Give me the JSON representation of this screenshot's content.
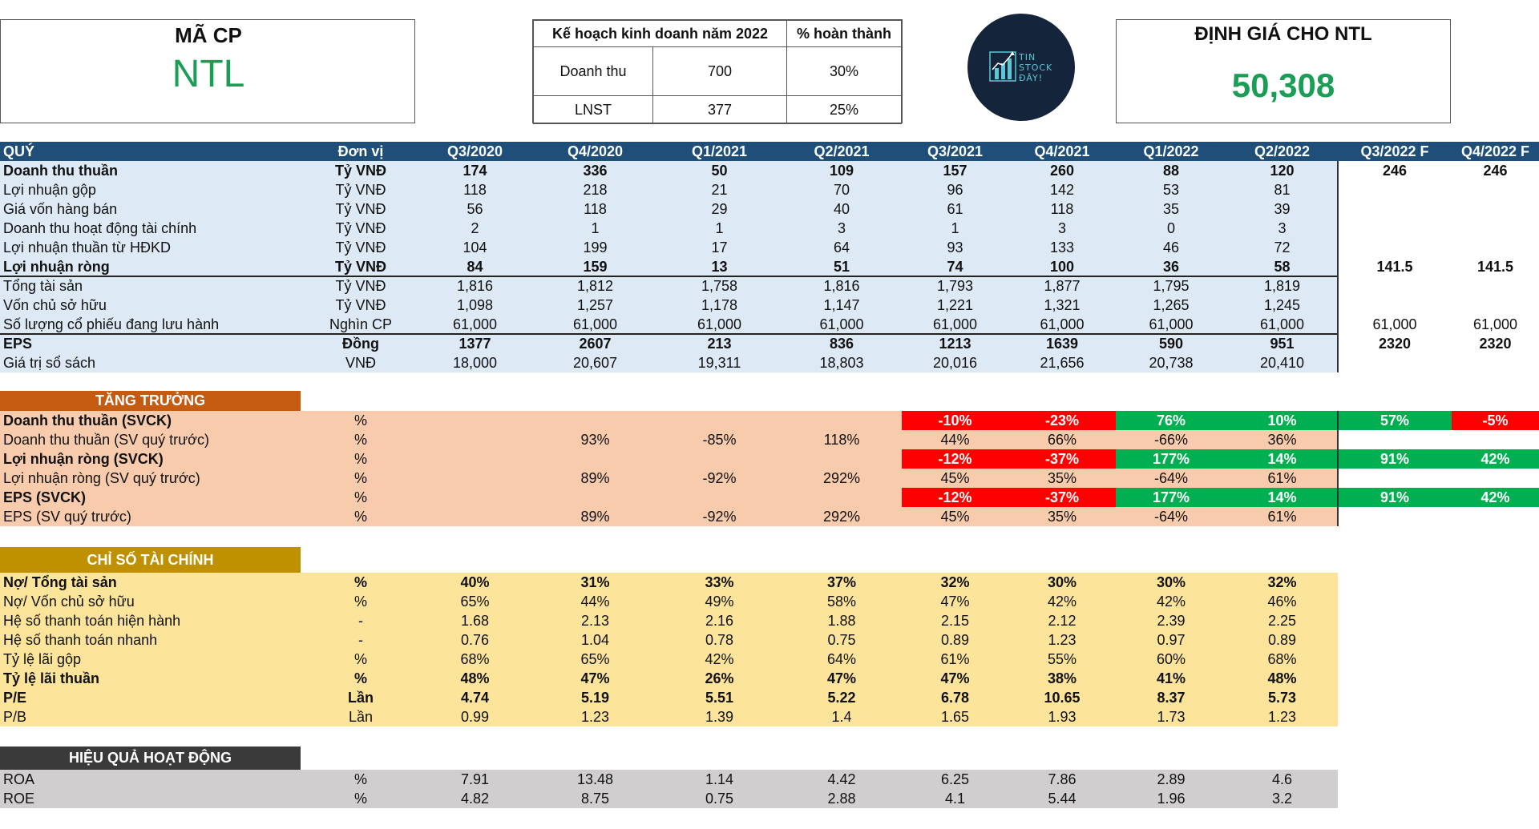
{
  "ticker_box": {
    "title": "MÃ CP",
    "ticker": "NTL"
  },
  "plan": {
    "header": "Kế hoạch kinh doanh năm 2022",
    "completion_header": "% hoàn thành",
    "rows": [
      {
        "label": "Doanh thu",
        "value": "700",
        "completion": "30%"
      },
      {
        "label": "LNST",
        "value": "377",
        "completion": "25%"
      }
    ]
  },
  "logo": {
    "line1": "TIN",
    "line2": "STOCK",
    "line3": "ĐÂY!",
    "bg": "#14243a",
    "accent": "#5bc8d6"
  },
  "valuation": {
    "title": "ĐỊNH GIÁ CHO NTL",
    "value": "50,308"
  },
  "colors": {
    "header_blue": "#1f4e79",
    "green": "#00b050",
    "red": "#ff0000",
    "ticker_green": "#1a9e55"
  },
  "main": {
    "headers": [
      "QUÝ",
      "Đơn vị",
      "Q3/2020",
      "Q4/2020",
      "Q1/2021",
      "Q2/2021",
      "Q3/2021",
      "Q4/2021",
      "Q1/2022",
      "Q2/2022",
      "Q3/2022 F",
      "Q4/2022 F"
    ],
    "rows": [
      {
        "label": "Doanh thu thuần",
        "unit": "Tỷ VNĐ",
        "bold": true,
        "values": [
          "174",
          "336",
          "50",
          "109",
          "157",
          "260",
          "88",
          "120",
          "246",
          "246"
        ]
      },
      {
        "label": "Lợi nhuận gộp",
        "unit": "Tỷ VNĐ",
        "bold": false,
        "values": [
          "118",
          "218",
          "21",
          "70",
          "96",
          "142",
          "53",
          "81",
          "",
          ""
        ]
      },
      {
        "label": "Giá vốn hàng bán",
        "unit": "Tỷ VNĐ",
        "bold": false,
        "values": [
          "56",
          "118",
          "29",
          "40",
          "61",
          "118",
          "35",
          "39",
          "",
          ""
        ]
      },
      {
        "label": "Doanh thu hoạt động tài chính",
        "unit": "Tỷ VNĐ",
        "bold": false,
        "values": [
          "2",
          "1",
          "1",
          "3",
          "1",
          "3",
          "0",
          "3",
          "",
          ""
        ]
      },
      {
        "label": "Lợi nhuận thuần từ HĐKD",
        "unit": "Tỷ VNĐ",
        "bold": false,
        "values": [
          "104",
          "199",
          "17",
          "64",
          "93",
          "133",
          "46",
          "72",
          "",
          ""
        ]
      },
      {
        "label": "Lợi nhuận ròng",
        "unit": "Tỷ VNĐ",
        "bold": true,
        "values": [
          "84",
          "159",
          "13",
          "51",
          "74",
          "100",
          "36",
          "58",
          "141.5",
          "141.5"
        ]
      },
      {
        "label": "Tổng tài sản",
        "unit": "Tỷ VNĐ",
        "bold": false,
        "values": [
          "1,816",
          "1,812",
          "1,758",
          "1,816",
          "1,793",
          "1,877",
          "1,795",
          "1,819",
          "",
          ""
        ]
      },
      {
        "label": "Vốn chủ sở hữu",
        "unit": "Tỷ VNĐ",
        "bold": false,
        "values": [
          "1,098",
          "1,257",
          "1,178",
          "1,147",
          "1,221",
          "1,321",
          "1,265",
          "1,245",
          "",
          ""
        ]
      },
      {
        "label": "Số lượng cổ phiếu đang lưu hành",
        "unit": "Nghìn CP",
        "bold": false,
        "values": [
          "61,000",
          "61,000",
          "61,000",
          "61,000",
          "61,000",
          "61,000",
          "61,000",
          "61,000",
          "61,000",
          "61,000"
        ]
      },
      {
        "label": "EPS",
        "unit": "Đồng",
        "bold": true,
        "values": [
          "1377",
          "2607",
          "213",
          "836",
          "1213",
          "1639",
          "590",
          "951",
          "2320",
          "2320"
        ]
      },
      {
        "label": "Giá trị sổ sách",
        "unit": "VNĐ",
        "bold": false,
        "values": [
          "18,000",
          "20,607",
          "19,311",
          "18,803",
          "20,016",
          "21,656",
          "20,738",
          "20,410",
          "",
          ""
        ]
      }
    ]
  },
  "growth": {
    "title": "TĂNG TRƯỞNG",
    "rows": [
      {
        "label": "Doanh thu thuần (SVCK)",
        "unit": "%",
        "bold": true,
        "values": [
          "",
          "",
          "",
          "",
          "-10%",
          "-23%",
          "76%",
          "10%",
          "57%",
          "-5%"
        ]
      },
      {
        "label": "Doanh thu thuần (SV quý trước)",
        "unit": "%",
        "bold": false,
        "values": [
          "",
          "93%",
          "-85%",
          "118%",
          "44%",
          "66%",
          "-66%",
          "36%",
          "",
          ""
        ]
      },
      {
        "label": "Lợi nhuận ròng (SVCK)",
        "unit": "%",
        "bold": true,
        "values": [
          "",
          "",
          "",
          "",
          "-12%",
          "-37%",
          "177%",
          "14%",
          "91%",
          "42%"
        ]
      },
      {
        "label": "Lợi nhuận ròng (SV quý trước)",
        "unit": "%",
        "bold": false,
        "values": [
          "",
          "89%",
          "-92%",
          "292%",
          "45%",
          "35%",
          "-64%",
          "61%",
          "",
          ""
        ]
      },
      {
        "label": "EPS (SVCK)",
        "unit": "%",
        "bold": true,
        "values": [
          "",
          "",
          "",
          "",
          "-12%",
          "-37%",
          "177%",
          "14%",
          "91%",
          "42%"
        ]
      },
      {
        "label": "EPS (SV quý trước)",
        "unit": "%",
        "bold": false,
        "values": [
          "",
          "89%",
          "-92%",
          "292%",
          "45%",
          "35%",
          "-64%",
          "61%",
          "",
          ""
        ]
      }
    ]
  },
  "ratios": {
    "title": "CHỈ SỐ TÀI CHÍNH",
    "rows": [
      {
        "label": "Nợ/ Tổng tài sản",
        "unit": "%",
        "bold": true,
        "values": [
          "40%",
          "31%",
          "33%",
          "37%",
          "32%",
          "30%",
          "30%",
          "32%"
        ]
      },
      {
        "label": "Nợ/ Vốn chủ sở hữu",
        "unit": "%",
        "bold": false,
        "values": [
          "65%",
          "44%",
          "49%",
          "58%",
          "47%",
          "42%",
          "42%",
          "46%"
        ]
      },
      {
        "label": "Hệ số thanh toán hiện hành",
        "unit": "-",
        "bold": false,
        "values": [
          "1.68",
          "2.13",
          "2.16",
          "1.88",
          "2.15",
          "2.12",
          "2.39",
          "2.25"
        ]
      },
      {
        "label": "Hệ số thanh toán nhanh",
        "unit": "-",
        "bold": false,
        "values": [
          "0.76",
          "1.04",
          "0.78",
          "0.75",
          "0.89",
          "1.23",
          "0.97",
          "0.89"
        ]
      },
      {
        "label": "Tỷ lệ lãi gộp",
        "unit": "%",
        "bold": false,
        "values": [
          "68%",
          "65%",
          "42%",
          "64%",
          "61%",
          "55%",
          "60%",
          "68%"
        ]
      },
      {
        "label": "Tỷ lệ lãi thuần",
        "unit": "%",
        "bold": true,
        "values": [
          "48%",
          "47%",
          "26%",
          "47%",
          "47%",
          "38%",
          "41%",
          "48%"
        ]
      },
      {
        "label": "P/E",
        "unit": "Lần",
        "bold": true,
        "values": [
          "4.74",
          "5.19",
          "5.51",
          "5.22",
          "6.78",
          "10.65",
          "8.37",
          "5.73"
        ]
      },
      {
        "label": "P/B",
        "unit": "Lần",
        "bold": false,
        "values": [
          "0.99",
          "1.23",
          "1.39",
          "1.4",
          "1.65",
          "1.93",
          "1.73",
          "1.23"
        ]
      }
    ]
  },
  "efficiency": {
    "title": "HIỆU QUẢ HOẠT ĐỘNG",
    "rows": [
      {
        "label": "ROA",
        "unit": "%",
        "bold": false,
        "values": [
          "7.91",
          "13.48",
          "1.14",
          "4.42",
          "6.25",
          "7.86",
          "2.89",
          "4.6"
        ]
      },
      {
        "label": "ROE",
        "unit": "%",
        "bold": false,
        "values": [
          "4.82",
          "8.75",
          "0.75",
          "2.88",
          "4.1",
          "5.44",
          "1.96",
          "3.2"
        ]
      }
    ]
  }
}
